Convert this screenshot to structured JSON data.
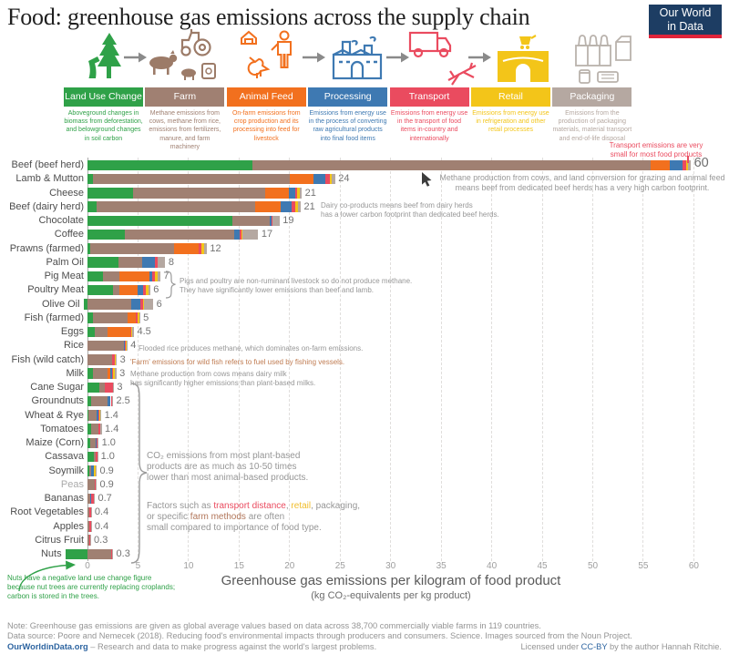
{
  "header": {
    "title": "Food: greenhouse gas emissions across the supply chain",
    "logo_line1": "Our World",
    "logo_line2": "in Data"
  },
  "supply_chain_icons": [
    "deforestation-tree-icon",
    "arrow-icon",
    "tractor-livestock-icon",
    "farmer-chicken-icon",
    "arrow-icon",
    "factory-icon",
    "arrow-icon",
    "truck-plane-icon",
    "arrow-icon",
    "store-icon",
    "bottles-packaging-icon"
  ],
  "legend": [
    {
      "label": "Land Use Change",
      "color": "#2fa148",
      "description": "Aboveground changes in biomass from deforestation, and belowground changes in soil carbon"
    },
    {
      "label": "Farm",
      "color": "#a08072",
      "description": "Methane emissions from cows, methane from rice, emissions from fertilizers, manure, and farm machinery"
    },
    {
      "label": "Animal Feed",
      "color": "#f2701e",
      "description": "On-farm emissions from crop production and its processing into feed for livestock"
    },
    {
      "label": "Processing",
      "color": "#3e79b2",
      "description": "Emissions from energy use in the process of converting raw agricultural products into final food items"
    },
    {
      "label": "Transport",
      "color": "#ea4b5f",
      "description": "Emissions from energy use in the transport of food items in-country and internationally"
    },
    {
      "label": "Retail",
      "color": "#f3c519",
      "description": "Emissions from energy use in refrigeration and other retail processes"
    },
    {
      "label": "Packaging",
      "color": "#b5a8a1",
      "description": "Emissions from the production of packaging materials, material transport and end-of-life disposal"
    }
  ],
  "chart_data": {
    "type": "bar",
    "orientation": "horizontal",
    "stacked": true,
    "series_labels": [
      "Land Use Change",
      "Farm",
      "Animal Feed",
      "Processing",
      "Transport",
      "Retail",
      "Packaging"
    ],
    "colors": [
      "#2fa148",
      "#a08072",
      "#f2701e",
      "#3e79b2",
      "#ea4b5f",
      "#f3c519",
      "#b5a8a1"
    ],
    "xlim": [
      -2.5,
      62
    ],
    "x_ticks": [
      "0",
      "5",
      "10",
      "15",
      "20",
      "25",
      "30",
      "35",
      "40",
      "45",
      "50",
      "55",
      "60"
    ],
    "xlabel_line1": "Greenhouse gas emissions per kilogram of food product",
    "xlabel_line2": "(kg CO₂-equivalents per kg product)",
    "rows": [
      {
        "label": "Beef (beef herd)",
        "values": [
          16.3,
          39.4,
          1.9,
          1.3,
          0.3,
          0.2,
          0.3
        ],
        "value_label": "60",
        "big": true
      },
      {
        "label": "Lamb & Mutton",
        "values": [
          0.5,
          19.5,
          2.4,
          1.1,
          0.5,
          0.2,
          0.3
        ],
        "value_label": "24"
      },
      {
        "label": "Cheese",
        "values": [
          4.5,
          13.1,
          2.3,
          0.7,
          0.1,
          0.3,
          0.2
        ],
        "value_label": "21"
      },
      {
        "label": "Beef (dairy herd)",
        "values": [
          0.9,
          15.7,
          2.5,
          1.1,
          0.4,
          0.2,
          0.3
        ],
        "value_label": "21"
      },
      {
        "label": "Chocolate",
        "values": [
          14.3,
          3.7,
          0,
          0.2,
          0.1,
          0,
          0.7
        ],
        "value_label": "19"
      },
      {
        "label": "Coffee",
        "values": [
          3.7,
          10.8,
          0,
          0.6,
          0.1,
          0.1,
          1.6
        ],
        "value_label": "17"
      },
      {
        "label": "Prawns (farmed)",
        "values": [
          0.3,
          8.3,
          2.4,
          0,
          0.3,
          0.2,
          0.3
        ],
        "value_label": "12"
      },
      {
        "label": "Palm Oil",
        "values": [
          3.1,
          2.3,
          0,
          1.3,
          0.2,
          0,
          0.8
        ],
        "value_label": "8"
      },
      {
        "label": "Pig Meat",
        "values": [
          1.5,
          1.7,
          2.9,
          0.3,
          0.3,
          0.2,
          0.3
        ],
        "value_label": "7"
      },
      {
        "label": "Poultry Meat",
        "values": [
          2.5,
          0.7,
          1.8,
          0.5,
          0.3,
          0.2,
          0.2
        ],
        "value_label": "6"
      },
      {
        "label": "Olive Oil",
        "values": [
          -0.4,
          4.3,
          0,
          0.9,
          0.3,
          0.1,
          0.9
        ],
        "value_label": "6"
      },
      {
        "label": "Fish (farmed)",
        "values": [
          0.5,
          3.5,
          0.8,
          0,
          0.2,
          0.1,
          0.1
        ],
        "value_label": "5"
      },
      {
        "label": "Eggs",
        "values": [
          0.7,
          1.3,
          2.2,
          0,
          0.1,
          0.1,
          0.2
        ],
        "value_label": "4.5"
      },
      {
        "label": "Rice",
        "values": [
          0,
          3.6,
          0,
          0.1,
          0.1,
          0.06,
          0.08
        ],
        "value_label": "4"
      },
      {
        "label": "Fish (wild catch)",
        "values": [
          0,
          2.4,
          0,
          0.05,
          0.25,
          0.1,
          0.1
        ],
        "value_label": "3"
      },
      {
        "label": "Milk",
        "values": [
          0.5,
          1.5,
          0.25,
          0.15,
          0.1,
          0.25,
          0.1
        ],
        "value_label": "3"
      },
      {
        "label": "Cane Sugar",
        "values": [
          1.2,
          0.5,
          0,
          0,
          0.8,
          0,
          0.1
        ],
        "value_label": "3"
      },
      {
        "label": "Groundnuts",
        "values": [
          0.4,
          1.6,
          0,
          0.3,
          0.1,
          0.02,
          0.1
        ],
        "value_label": "2.5"
      },
      {
        "label": "Wheat & Rye",
        "values": [
          0.1,
          0.8,
          0,
          0.2,
          0.1,
          0.06,
          0.1
        ],
        "value_label": "1.4"
      },
      {
        "label": "Tomatoes",
        "values": [
          0.4,
          0.7,
          0,
          0.01,
          0.15,
          0.02,
          0.12
        ],
        "value_label": "1.4"
      },
      {
        "label": "Maize (Corn)",
        "values": [
          0.3,
          0.5,
          0,
          0.08,
          0.09,
          0.04,
          0.08
        ],
        "value_label": "1.0"
      },
      {
        "label": "Cassava",
        "values": [
          0.6,
          0.25,
          0,
          0,
          0.1,
          0,
          0.05
        ],
        "value_label": "1.0"
      },
      {
        "label": "Soymilk",
        "values": [
          0.2,
          0.2,
          0,
          0.2,
          0.05,
          0.15,
          0.1
        ],
        "value_label": "0.9"
      },
      {
        "label": "Peas",
        "values": [
          0,
          0.7,
          0,
          0,
          0.1,
          0.02,
          0.08
        ],
        "value_label": "0.9",
        "muted": true
      },
      {
        "label": "Bananas",
        "values": [
          0,
          0.3,
          0,
          0.06,
          0.28,
          0.02,
          0.06
        ],
        "value_label": "0.7"
      },
      {
        "label": "Root Vegetables",
        "values": [
          0,
          0.2,
          0,
          0,
          0.12,
          0.02,
          0.06
        ],
        "value_label": "0.4"
      },
      {
        "label": "Apples",
        "values": [
          0,
          0.22,
          0,
          0,
          0.1,
          0.03,
          0.05
        ],
        "value_label": "0.4"
      },
      {
        "label": "Citrus Fruit",
        "values": [
          0,
          0.2,
          0,
          0,
          0.08,
          0,
          0.04
        ],
        "value_label": "0.3"
      },
      {
        "label": "Nuts",
        "values": [
          -2.2,
          2.3,
          0,
          0.05,
          0.1,
          0.02,
          0.06
        ],
        "value_label": "0.3"
      }
    ]
  },
  "annotations": {
    "transport_note": "Transport emissions are very\nsmall for most food products",
    "beef_note": "Methane production from cows, and land conversion for grazing and animal feed\nmeans beef from dedicated beef herds has a very high carbon footprint.",
    "dairy_note": "Dairy co-products means beef from dairy herds\nhas a lower carbon footprint than dedicated beef herds.",
    "pig_poultry_note": "Pigs and poultry are non-ruminant livestock so do not produce methane.\nThey have significantly lower emissions than beef and lamb.",
    "rice_note": "Flooded rice produces methane, which dominates on-farm emissions.",
    "wild_fish_note": "'Farm' emissions for wild fish refers to fuel used by fishing vessels.",
    "milk_note": "Methane production from cows means dairy milk\nhas significantly higher emissions than plant-based milks.",
    "plant_note": "CO₂ emissions from most plant-based\nproducts are as much as 10-50 times\nlower than most animal-based products.",
    "factors_parts": [
      {
        "text": "Factors such as ",
        "color": null
      },
      {
        "text": "transport distance",
        "color": "#ea4b5f"
      },
      {
        "text": ", ",
        "color": null
      },
      {
        "text": "retail",
        "color": "#f0bd2c"
      },
      {
        "text": ", packaging,\nor specific ",
        "color": null
      },
      {
        "text": "farm methods",
        "color": "#b1765a"
      },
      {
        "text": " are often\nsmall compared to importance of food type.",
        "color": null
      }
    ],
    "nuts_note": "Nuts have a negative land use change figure\nbecause nut trees are currently replacing croplands;\ncarbon is stored in the trees."
  },
  "footer": {
    "note": "Note: Greenhouse gas emissions are given as global average values based on data across 38,700 commercially viable farms in 119 countries.",
    "source": "Data source: Poore and Nemecek (2018). Reducing food's environmental impacts through producers and consumers. Science. Images sourced from the Noun Project.",
    "owid_link": "OurWorldinData.org",
    "owid_rest": " – Research and data to make progress against the world's largest problems.",
    "license_pre": "Licensed under ",
    "license_link": "CC-BY",
    "license_post": " by the author Hannah Ritchie."
  }
}
